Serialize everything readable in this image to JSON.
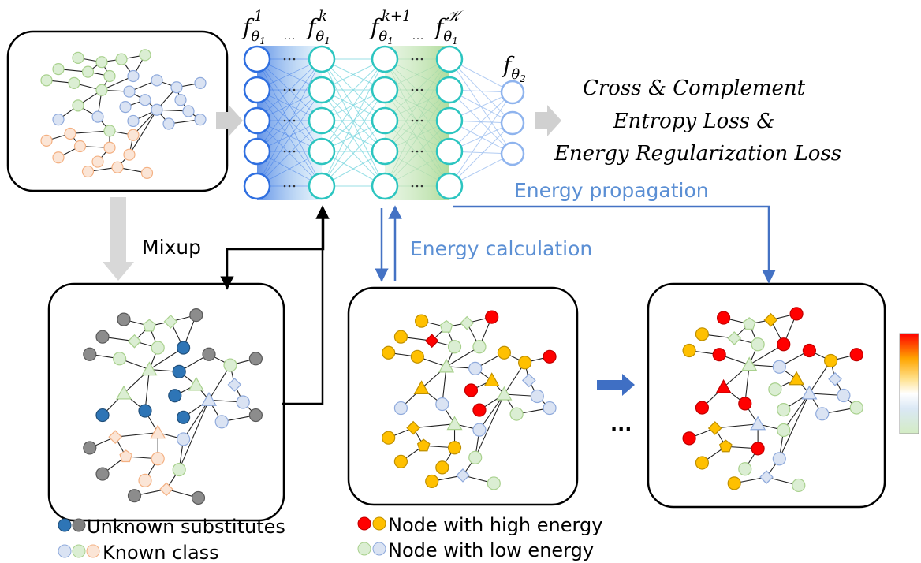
{
  "layer_labels": [
    {
      "f": "f",
      "sub": "θ",
      "subsub": "1",
      "sup": "1"
    },
    {
      "f": "f",
      "sub": "θ",
      "subsub": "1",
      "sup": "k"
    },
    {
      "f": "f",
      "sub": "θ",
      "subsub": "1",
      "sup": "k+1"
    },
    {
      "f": "f",
      "sub": "θ",
      "subsub": "1",
      "sup": "𝒦"
    }
  ],
  "layer_ellipses": [
    "…",
    "…"
  ],
  "output_label": {
    "f": "f",
    "sub": "θ",
    "subsub": "2"
  },
  "loss_text": [
    "Cross & Complement",
    "Entropy Loss &",
    "Energy Regularization Loss"
  ],
  "energy_propagation": "Energy propagation",
  "mixup": "Mixup",
  "energy_calculation": "Energy calculation",
  "continuation": "...",
  "legend": {
    "unknown": "Unknown substitutes",
    "known": "Known class",
    "high": "Node with high energy",
    "low": "Node with low energy"
  }
}
